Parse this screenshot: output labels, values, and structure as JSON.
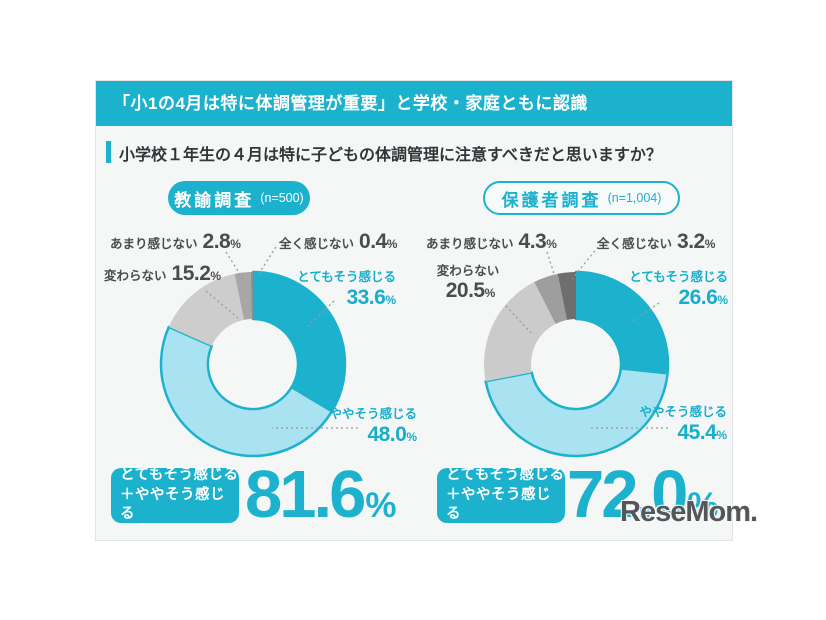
{
  "header": {
    "title": "「小1の4月は特に体調管理が重要」と学校・家庭ともに認識"
  },
  "question": {
    "text": "小学校１年生の４月は特に子どもの体調管理に注意すべきだと思いますか？"
  },
  "colors": {
    "accent_teal": "#1cb2ce",
    "light_blue": "#a9e2f0",
    "card_background": "#f5f7f7",
    "label_gray": "#4a4c4e"
  },
  "watermark": {
    "text": "ReseMom."
  },
  "chart_data": [
    {
      "type": "pie",
      "subtype": "donut",
      "title": "教諭調査",
      "n_label": "(n=500)",
      "categories": [
        "とてもそう感じる",
        "ややそう感じる",
        "変わらない",
        "あまり感じない",
        "全く感じない"
      ],
      "values": [
        33.6,
        48.0,
        15.2,
        2.8,
        0.4
      ],
      "colors": [
        "#1cb2ce",
        "#a9e2f0",
        "#cdcdcd",
        "#a7a7a7",
        "#8e8e8e"
      ],
      "start_angle": "12-oclock",
      "direction": "clockwise",
      "summary": {
        "label_line1": "とてもそう感じる",
        "label_line2": "＋ややそう感じる",
        "value": "81.6",
        "unit": "%"
      }
    },
    {
      "type": "pie",
      "subtype": "donut",
      "title": "保護者調査",
      "n_label": "(n=1,004)",
      "categories": [
        "とてもそう感じる",
        "ややそう感じる",
        "変わらない",
        "あまり感じない",
        "全く感じない"
      ],
      "values": [
        26.6,
        45.4,
        20.5,
        4.3,
        3.2
      ],
      "colors": [
        "#1cb2ce",
        "#a9e2f0",
        "#cbcbcb",
        "#9e9e9e",
        "#6e6e6e"
      ],
      "start_angle": "12-oclock",
      "direction": "clockwise",
      "summary": {
        "label_line1": "とてもそう感じる",
        "label_line2": "＋ややそう感じる",
        "value": "72.0",
        "unit": "%"
      }
    }
  ]
}
